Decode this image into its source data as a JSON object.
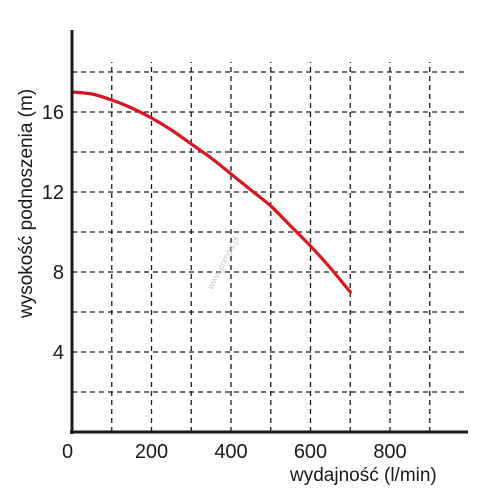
{
  "chart_data": {
    "type": "line",
    "xlabel": "wydajność (l/min)",
    "ylabel": "wysokość podnoszenia (m)",
    "xlim": [
      0,
      1000
    ],
    "ylim": [
      0,
      20
    ],
    "x_ticks": [
      0,
      200,
      400,
      600,
      800
    ],
    "x_tick_labels": [
      "0",
      "200",
      "400",
      "600",
      "800"
    ],
    "y_ticks": [
      4,
      8,
      12,
      16
    ],
    "y_tick_labels": [
      "4",
      "8",
      "12",
      "16"
    ],
    "grid": true,
    "series": [
      {
        "color": "#d7161f",
        "x": [
          0,
          50,
          100,
          150,
          200,
          250,
          300,
          350,
          400,
          450,
          500,
          550,
          600,
          650,
          700
        ],
        "y": [
          17.0,
          16.9,
          16.6,
          16.2,
          15.7,
          15.1,
          14.4,
          13.7,
          12.9,
          12.1,
          11.3,
          10.3,
          9.3,
          8.2,
          7.0
        ]
      }
    ]
  },
  "watermark": "www.pompa.pl"
}
